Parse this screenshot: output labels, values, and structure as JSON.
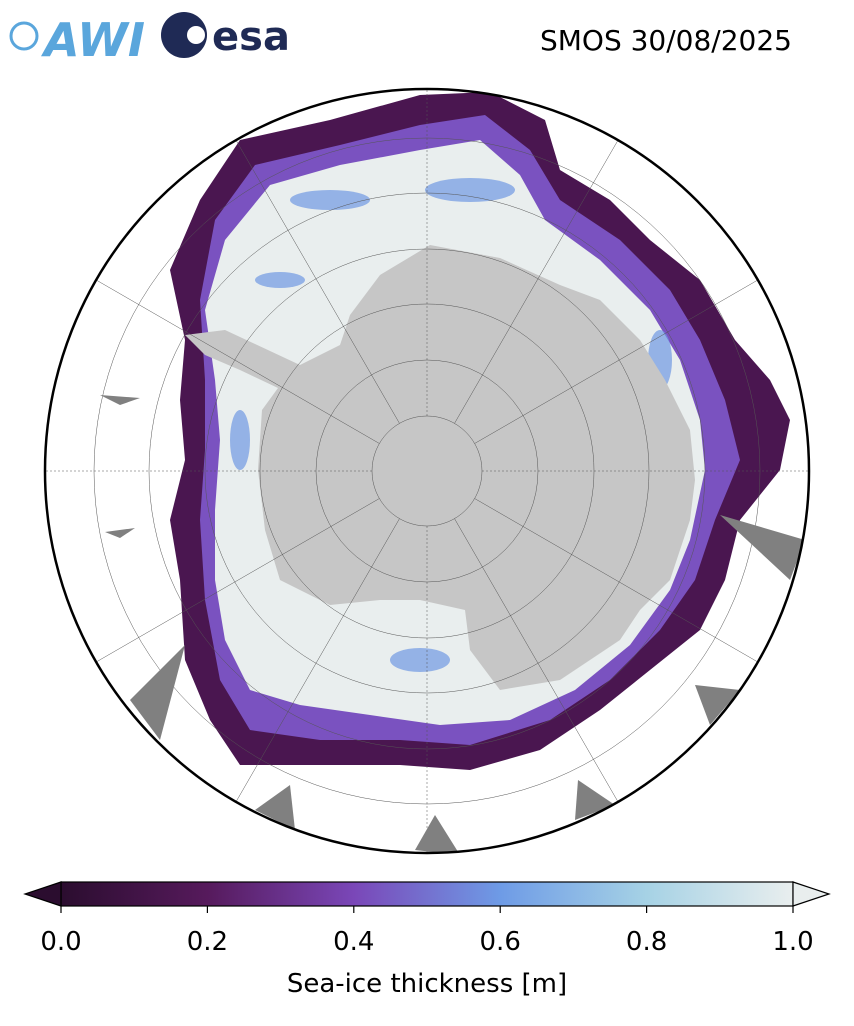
{
  "logos": {
    "awi": "AWI",
    "esa": "esa"
  },
  "title": "SMOS 30/08/2025",
  "colorbar": {
    "label": "Sea-ice thickness [m]",
    "lim": [
      0,
      1
    ],
    "ticks": [
      {
        "value": 0,
        "label": "0.0"
      },
      0.2,
      0.4,
      0.6,
      0.8,
      {
        "value": 1,
        "label": "1.0"
      }
    ],
    "colors": [
      "#2b0d2f",
      "#561a5c",
      "#7a47b8",
      "#6e9be6",
      "#a6d2e5",
      "#e9eeee"
    ],
    "extend": "both"
  }
}
